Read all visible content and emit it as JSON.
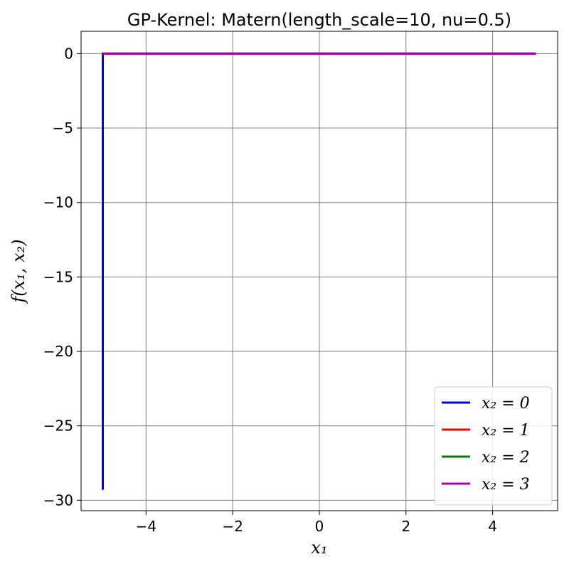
{
  "chart_data": {
    "type": "line",
    "title": "GP-Kernel: Matern(length_scale=10, nu=0.5)",
    "xlabel": "x₁",
    "ylabel": "f(x₁, x₂)",
    "xlim": [
      -5.5,
      5.5
    ],
    "ylim": [
      -30.7,
      1.5
    ],
    "xticks": [
      -4,
      -2,
      0,
      2,
      4
    ],
    "xtick_labels": [
      "−4",
      "−2",
      "0",
      "2",
      "4"
    ],
    "yticks": [
      0,
      -5,
      -10,
      -15,
      -20,
      -25,
      -30
    ],
    "ytick_labels": [
      "0",
      "−5",
      "−10",
      "−15",
      "−20",
      "−25",
      "−30"
    ],
    "grid": true,
    "legend_position": "bottom-right",
    "series": [
      {
        "name": "x₂ = 0",
        "color": "#0000ff",
        "x": [
          -5,
          -5,
          5
        ],
        "y": [
          -29.3,
          0,
          0
        ]
      },
      {
        "name": "x₂ = 1",
        "color": "#ff0000",
        "x": [
          -5,
          5
        ],
        "y": [
          0,
          0
        ]
      },
      {
        "name": "x₂ = 2",
        "color": "#008000",
        "x": [
          -5,
          5
        ],
        "y": [
          0,
          0
        ]
      },
      {
        "name": "x₂ = 3",
        "color": "#aa00aa",
        "x": [
          -5,
          5
        ],
        "y": [
          0,
          0
        ]
      }
    ]
  }
}
